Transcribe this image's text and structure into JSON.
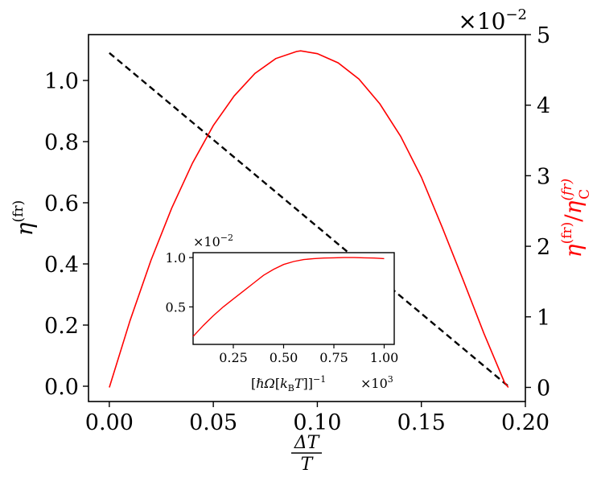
{
  "chart_data": [
    {
      "type": "line",
      "title": "",
      "xlabel_num": "ΔT",
      "xlabel_den": "T",
      "ylabel_left": "η(fr)",
      "ylabel_right": "η(fr)/η_C^(fr)",
      "right_axis_multiplier": "×10−2",
      "xlim": [
        -0.01,
        0.2
      ],
      "ylim_left": [
        -0.05,
        1.15
      ],
      "ylim_right": [
        -0.2,
        5.0
      ],
      "xticks": [
        0.0,
        0.05,
        0.1,
        0.15,
        0.2
      ],
      "xtick_labels": [
        "0.00",
        "0.05",
        "0.10",
        "0.15",
        "0.20"
      ],
      "yticks_left": [
        0.0,
        0.2,
        0.4,
        0.6,
        0.8,
        1.0
      ],
      "ytick_labels_left": [
        "0.0",
        "0.2",
        "0.4",
        "0.6",
        "0.8",
        "1.0"
      ],
      "yticks_right": [
        0,
        1,
        2,
        3,
        4,
        5
      ],
      "ytick_labels_right": [
        "0",
        "1",
        "2",
        "3",
        "4",
        "5"
      ],
      "grid": false,
      "series": [
        {
          "axis": "left",
          "style": "dashed",
          "color": "#000000",
          "x": [
            0.0,
            0.1918
          ],
          "y": [
            1.09,
            0.0
          ]
        },
        {
          "axis": "right",
          "style": "solid",
          "color": "#ff0000",
          "x": [
            0.0,
            0.01,
            0.02,
            0.03,
            0.04,
            0.05,
            0.06,
            0.07,
            0.08,
            0.09,
            0.092,
            0.1,
            0.11,
            0.12,
            0.13,
            0.14,
            0.15,
            0.16,
            0.17,
            0.18,
            0.19,
            0.1918
          ],
          "y": [
            0.0,
            0.95,
            1.8,
            2.54,
            3.18,
            3.71,
            4.13,
            4.45,
            4.66,
            4.76,
            4.77,
            4.73,
            4.6,
            4.37,
            4.02,
            3.56,
            2.98,
            2.27,
            1.53,
            0.77,
            0.07,
            0.0
          ]
        }
      ]
    },
    {
      "type": "line",
      "title": "",
      "role": "inset",
      "xlabel": "[ℏΩ[k_B T]]−1",
      "x_multiplier": "×10³",
      "y_multiplier": "×10−2",
      "xlim": [
        0.05,
        1.05
      ],
      "ylim": [
        0.12,
        1.05
      ],
      "xticks": [
        0.25,
        0.5,
        0.75,
        1.0
      ],
      "xtick_labels": [
        "0.25",
        "0.50",
        "0.75",
        "1.00"
      ],
      "yticks": [
        0.5,
        1.0
      ],
      "ytick_labels": [
        "0.5",
        "1.0"
      ],
      "series": [
        {
          "color": "#ff0000",
          "x": [
            0.05,
            0.1,
            0.15,
            0.2,
            0.25,
            0.3,
            0.35,
            0.4,
            0.45,
            0.5,
            0.55,
            0.6,
            0.65,
            0.7,
            0.75,
            0.8,
            0.85,
            0.9,
            0.95,
            1.0
          ],
          "y": [
            0.2,
            0.31,
            0.41,
            0.5,
            0.58,
            0.66,
            0.74,
            0.82,
            0.88,
            0.93,
            0.96,
            0.98,
            0.99,
            0.995,
            0.998,
            1.0,
            1.0,
            0.998,
            0.995,
            0.99
          ]
        }
      ]
    }
  ]
}
